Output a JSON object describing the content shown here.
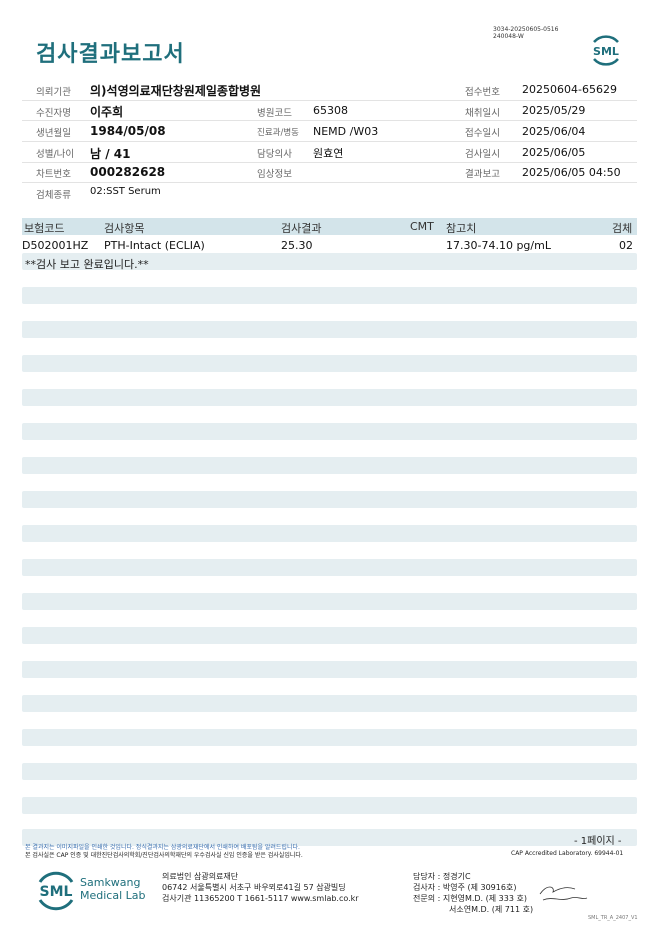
{
  "header": {
    "title": "검사결과보고서",
    "doc_id_line1": "3034-20250605-0516",
    "doc_id_line2": "240048-W",
    "logo_text": "SML"
  },
  "info": {
    "institution_label": "의뢰기관",
    "institution": "의)석영의료재단창원제일종합병원",
    "receipt_no_label": "접수번호",
    "receipt_no": "20250604-65629",
    "patient_label": "수진자명",
    "patient": "이주희",
    "hospital_code_label": "병원코드",
    "hospital_code": "65308",
    "collect_date_label": "채취일시",
    "collect_date": "2025/05/29",
    "birth_label": "생년월일",
    "birth": "1984/05/08",
    "dept_label": "진료과/병동",
    "dept": "NEMD /W03",
    "receipt_date_label": "접수일시",
    "receipt_date": "2025/06/04",
    "sex_age_label": "성별/나이",
    "sex_age": "남 / 41",
    "doctor_label": "담당의사",
    "doctor": "원효연",
    "test_date_label": "검사일시",
    "test_date": "2025/06/05",
    "chart_no_label": "차트번호",
    "chart_no": "000282628",
    "clinical_label": "임상정보",
    "clinical": "",
    "report_label": "결과보고",
    "report_date": "2025/06/05 04:50",
    "specimen_label": "검체종류",
    "specimen": "02:SST Serum"
  },
  "table": {
    "headers": {
      "code": "보험코드",
      "item": "검사항목",
      "result": "검사결과",
      "cmt": "CMT",
      "ref": "참고치",
      "specimen": "검체"
    },
    "rows": [
      {
        "code": "D502001HZ",
        "item": "PTH-Intact (ECLIA)",
        "result": "25.30",
        "cmt": "",
        "ref": "17.30-74.10 pg/mL",
        "specimen": "02"
      }
    ],
    "note": "**검사 보고 완료입니다.**"
  },
  "footer": {
    "page": "- 1페이지 -",
    "notice1": "본 결과지는 이미지파일을 인쇄한 것입니다. 정식결과지는 삼광의료재단에서 인쇄하여 배포됨을 알려드립니다.",
    "notice2": "본 검사실은 CAP 인증 및 대한진단검사의학회/진단검사의학재단의 우수검사실 신임 인증을 받은 검사실입니다.",
    "cap": "CAP Accredited Laboratory. 69944-01",
    "brand_abbr": "SML",
    "brand_line1": "Samkwang",
    "brand_line2": "Medical Lab",
    "org": "의료법인 삼광의료재단",
    "address": "06742 서울특별시 서초구 바우뫼로41길 57 삼광빌딩",
    "contact": "검사기관 11365200 T 1661-5117 www.smlab.co.kr",
    "manager": "담당자 : 정경기C",
    "tester": "검사자 : 박영주 (제 30916호)",
    "specialist1": "전문의 : 지현영M.D. (제 333 호)",
    "specialist2": "서소연M.D. (제 711 호)",
    "form_code": "SML_TR_A_2407_V1"
  },
  "colors": {
    "accent": "#1f6f7c",
    "stripe": "#e5eef1",
    "header_band": "#d3e4ea"
  }
}
